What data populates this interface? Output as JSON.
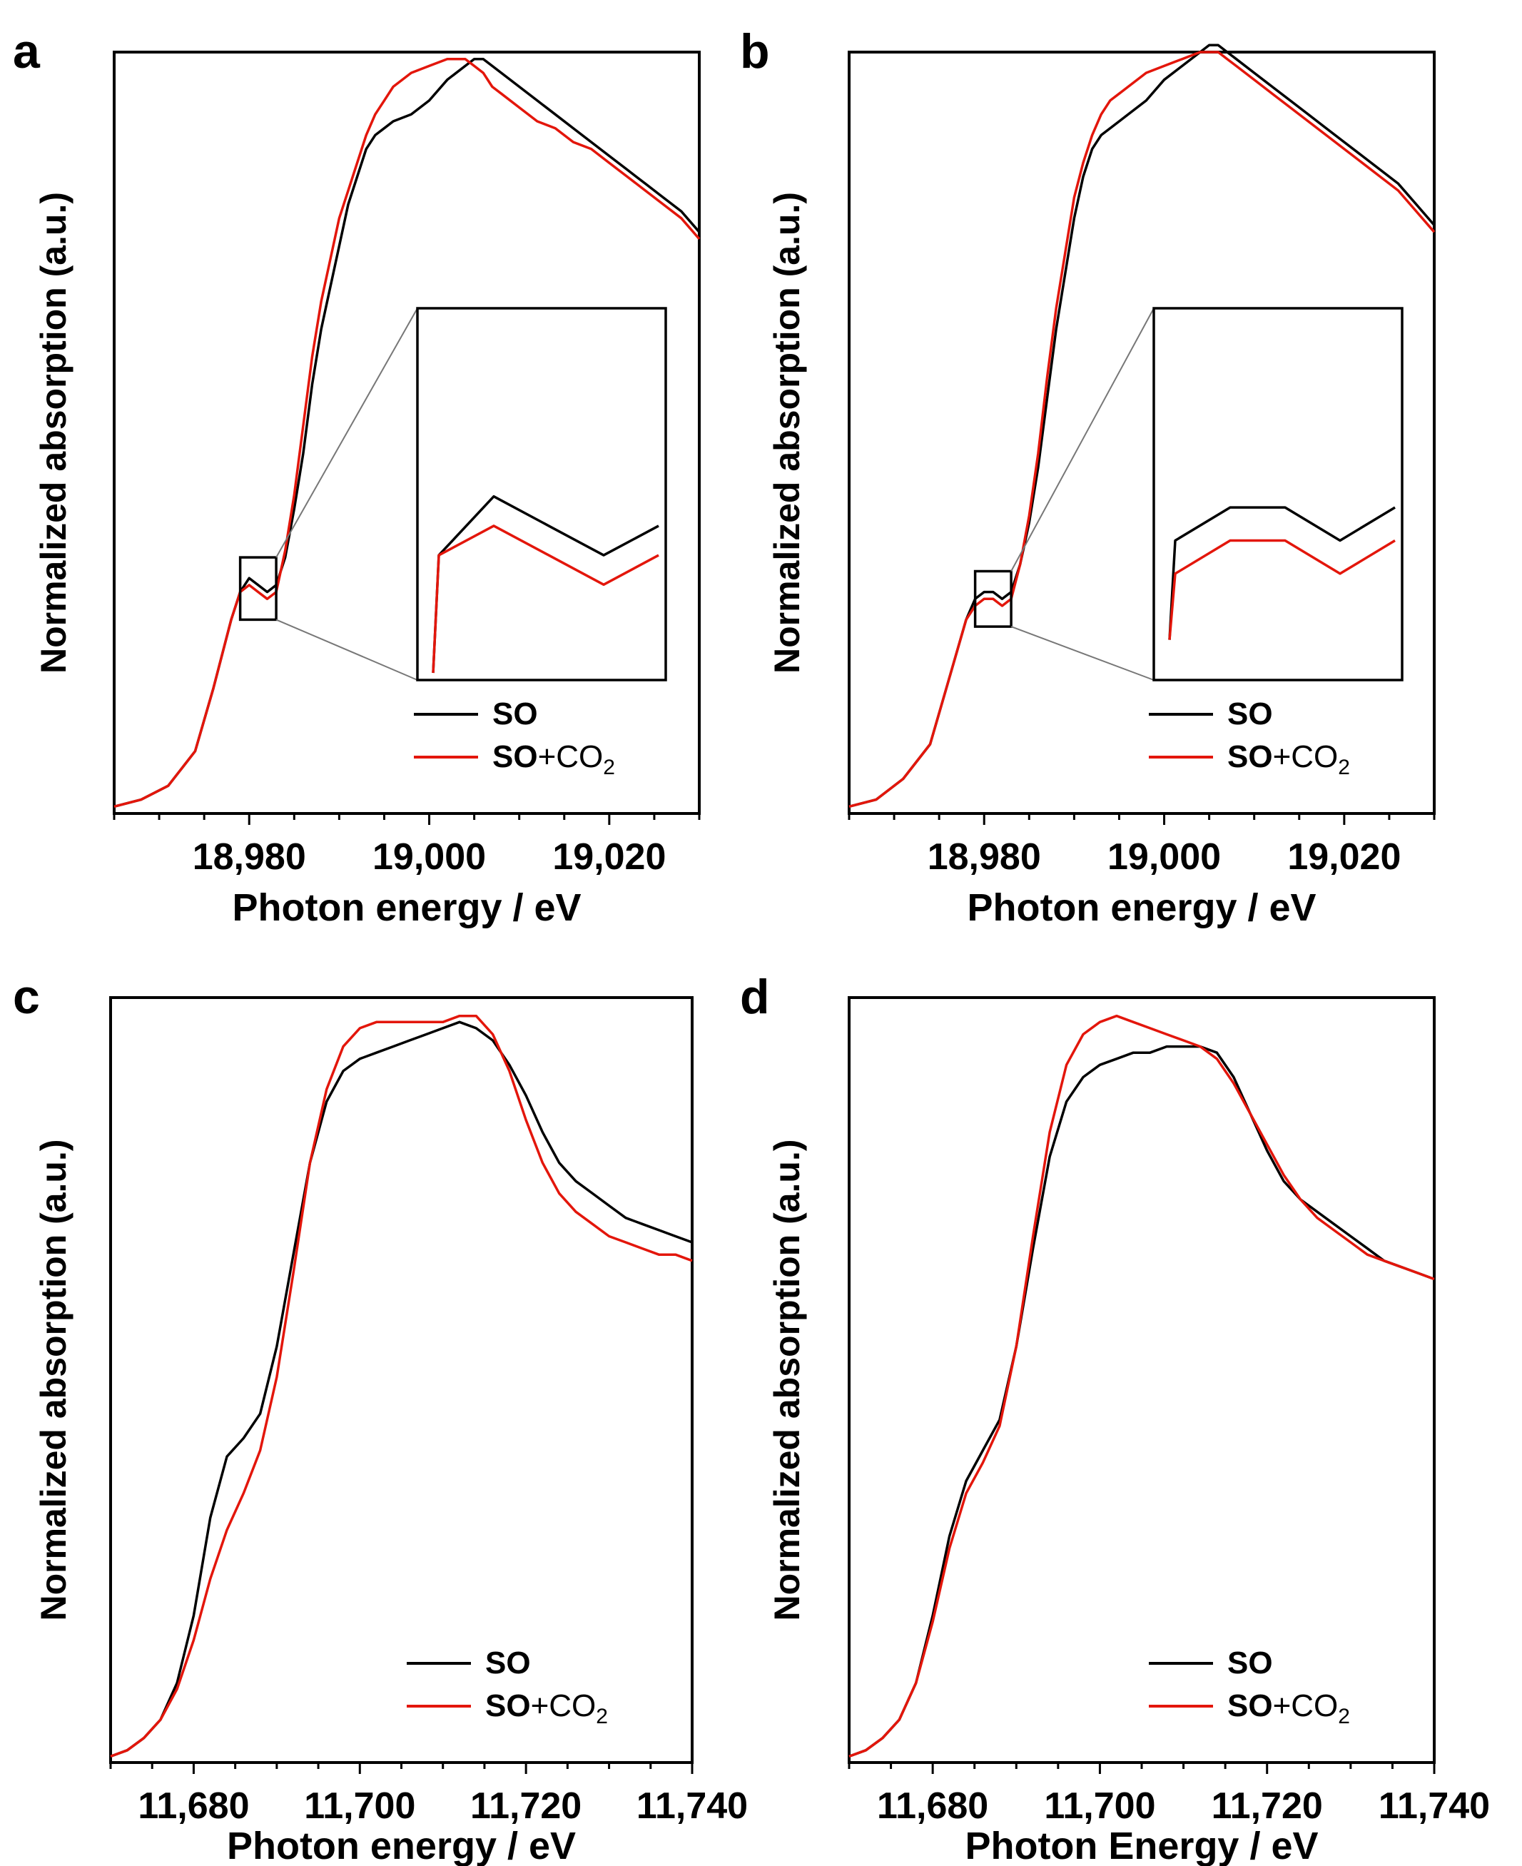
{
  "chart_data": [
    {
      "panel": "a",
      "type": "line",
      "title": "",
      "xlabel": "Photon energy / eV",
      "ylabel": "Normalized absorption (a.u.)",
      "xlim": [
        18965,
        19030
      ],
      "ylim": [
        0,
        1.1
      ],
      "xticks": [
        18980,
        19000,
        19020
      ],
      "xtick_labels": [
        "18,980",
        "19,000",
        "19,020"
      ],
      "legend": [
        "SO",
        "SO+CO2"
      ],
      "legend_sub": "2",
      "legend_position": "bottom-right",
      "inset": {
        "x_range": [
          18979,
          18983
        ],
        "y_range": [
          0.28,
          0.37
        ]
      },
      "colors": {
        "SO": "#000000",
        "SO+CO2": "#e3160b"
      },
      "series": [
        {
          "name": "SO",
          "x": [
            18965,
            18968,
            18971,
            18974,
            18976,
            18978,
            18979,
            18980,
            18981,
            18982,
            18983,
            18984,
            18985,
            18986,
            18987,
            18988,
            18989,
            18990,
            18991,
            18992,
            18993,
            18994,
            18995,
            18996,
            18998,
            19000,
            19002,
            19004,
            19005,
            19006,
            19007,
            19008,
            19010,
            19012,
            19014,
            19016,
            19018,
            19020,
            19022,
            19024,
            19026,
            19028,
            19030
          ],
          "y": [
            0.01,
            0.02,
            0.04,
            0.09,
            0.18,
            0.28,
            0.32,
            0.34,
            0.33,
            0.32,
            0.33,
            0.37,
            0.44,
            0.52,
            0.62,
            0.7,
            0.76,
            0.82,
            0.88,
            0.92,
            0.96,
            0.98,
            0.99,
            1.0,
            1.01,
            1.03,
            1.06,
            1.08,
            1.09,
            1.09,
            1.08,
            1.07,
            1.05,
            1.03,
            1.01,
            0.99,
            0.97,
            0.95,
            0.93,
            0.91,
            0.89,
            0.87,
            0.84
          ]
        },
        {
          "name": "SO+CO2",
          "x": [
            18965,
            18968,
            18971,
            18974,
            18976,
            18978,
            18979,
            18980,
            18981,
            18982,
            18983,
            18984,
            18985,
            18986,
            18987,
            18988,
            18989,
            18990,
            18991,
            18992,
            18993,
            18994,
            18995,
            18996,
            18998,
            19000,
            19002,
            19004,
            19005,
            19006,
            19007,
            19008,
            19010,
            19012,
            19014,
            19016,
            19018,
            19020,
            19022,
            19024,
            19026,
            19028,
            19030
          ],
          "y": [
            0.01,
            0.02,
            0.04,
            0.09,
            0.18,
            0.28,
            0.32,
            0.33,
            0.32,
            0.31,
            0.32,
            0.38,
            0.46,
            0.56,
            0.66,
            0.74,
            0.8,
            0.86,
            0.9,
            0.94,
            0.98,
            1.01,
            1.03,
            1.05,
            1.07,
            1.08,
            1.09,
            1.09,
            1.08,
            1.07,
            1.05,
            1.04,
            1.02,
            1.0,
            0.99,
            0.97,
            0.96,
            0.94,
            0.92,
            0.9,
            0.88,
            0.86,
            0.83
          ]
        }
      ]
    },
    {
      "panel": "b",
      "type": "line",
      "title": "",
      "xlabel": "Photon energy / eV",
      "ylabel": "Normalized absorption (a.u.)",
      "xlim": [
        18965,
        19030
      ],
      "ylim": [
        0,
        1.1
      ],
      "xticks": [
        18980,
        19000,
        19020
      ],
      "xtick_labels": [
        "18,980",
        "19,000",
        "19,020"
      ],
      "legend": [
        "SO",
        "SO+CO2"
      ],
      "legend_sub": "2",
      "legend_position": "bottom-right",
      "inset": {
        "x_range": [
          18979,
          18983
        ],
        "y_range": [
          0.27,
          0.35
        ]
      },
      "colors": {
        "SO": "#000000",
        "SO+CO2": "#e3160b"
      },
      "series": [
        {
          "name": "SO",
          "x": [
            18965,
            18968,
            18971,
            18974,
            18976,
            18978,
            18979,
            18980,
            18981,
            18982,
            18983,
            18984,
            18985,
            18986,
            18987,
            18988,
            18989,
            18990,
            18991,
            18992,
            18993,
            18994,
            18995,
            18996,
            18998,
            19000,
            19002,
            19004,
            19005,
            19006,
            19007,
            19008,
            19010,
            19012,
            19014,
            19016,
            19018,
            19020,
            19022,
            19024,
            19026,
            19028,
            19030
          ],
          "y": [
            0.01,
            0.02,
            0.05,
            0.1,
            0.19,
            0.28,
            0.31,
            0.32,
            0.32,
            0.31,
            0.32,
            0.36,
            0.42,
            0.5,
            0.6,
            0.7,
            0.78,
            0.86,
            0.92,
            0.96,
            0.98,
            0.99,
            1.0,
            1.01,
            1.03,
            1.06,
            1.08,
            1.1,
            1.11,
            1.11,
            1.1,
            1.09,
            1.07,
            1.05,
            1.03,
            1.01,
            0.99,
            0.97,
            0.95,
            0.93,
            0.91,
            0.88,
            0.85
          ]
        },
        {
          "name": "SO+CO2",
          "x": [
            18965,
            18968,
            18971,
            18974,
            18976,
            18978,
            18979,
            18980,
            18981,
            18982,
            18983,
            18984,
            18985,
            18986,
            18987,
            18988,
            18989,
            18990,
            18991,
            18992,
            18993,
            18994,
            18995,
            18996,
            18998,
            19000,
            19002,
            19004,
            19005,
            19006,
            19007,
            19008,
            19010,
            19012,
            19014,
            19016,
            19018,
            19020,
            19022,
            19024,
            19026,
            19028,
            19030
          ],
          "y": [
            0.01,
            0.02,
            0.05,
            0.1,
            0.19,
            0.28,
            0.3,
            0.31,
            0.31,
            0.3,
            0.31,
            0.36,
            0.43,
            0.52,
            0.63,
            0.73,
            0.81,
            0.89,
            0.94,
            0.98,
            1.01,
            1.03,
            1.04,
            1.05,
            1.07,
            1.08,
            1.09,
            1.1,
            1.1,
            1.1,
            1.09,
            1.08,
            1.06,
            1.04,
            1.02,
            1.0,
            0.98,
            0.96,
            0.94,
            0.92,
            0.9,
            0.87,
            0.84
          ]
        }
      ]
    },
    {
      "panel": "c",
      "type": "line",
      "title": "",
      "xlabel": "Photon energy / eV",
      "ylabel": "Normalized absorption (a.u.)",
      "xlim": [
        11670,
        11740
      ],
      "ylim": [
        0,
        1.25
      ],
      "xticks": [
        11680,
        11700,
        11720,
        11740
      ],
      "xtick_labels": [
        "11,680",
        "11,700",
        "11,720",
        "11,740"
      ],
      "legend": [
        "SO",
        "SO+CO2"
      ],
      "legend_sub": "2",
      "legend_position": "bottom-right",
      "colors": {
        "SO": "#000000",
        "SO+CO2": "#e3160b"
      },
      "series": [
        {
          "name": "SO",
          "x": [
            11670,
            11672,
            11674,
            11676,
            11678,
            11680,
            11682,
            11684,
            11686,
            11688,
            11690,
            11692,
            11694,
            11696,
            11698,
            11700,
            11702,
            11704,
            11706,
            11708,
            11710,
            11712,
            11714,
            11716,
            11718,
            11720,
            11722,
            11724,
            11726,
            11728,
            11730,
            11732,
            11734,
            11736,
            11738,
            11740
          ],
          "y": [
            0.01,
            0.02,
            0.04,
            0.07,
            0.13,
            0.24,
            0.4,
            0.5,
            0.53,
            0.57,
            0.68,
            0.83,
            0.98,
            1.08,
            1.13,
            1.15,
            1.16,
            1.17,
            1.18,
            1.19,
            1.2,
            1.21,
            1.2,
            1.18,
            1.14,
            1.09,
            1.03,
            0.98,
            0.95,
            0.93,
            0.91,
            0.89,
            0.88,
            0.87,
            0.86,
            0.85
          ]
        },
        {
          "name": "SO+CO2",
          "x": [
            11670,
            11672,
            11674,
            11676,
            11678,
            11680,
            11682,
            11684,
            11686,
            11688,
            11690,
            11692,
            11694,
            11696,
            11698,
            11700,
            11702,
            11704,
            11706,
            11708,
            11710,
            11712,
            11714,
            11716,
            11718,
            11720,
            11722,
            11724,
            11726,
            11728,
            11730,
            11732,
            11734,
            11736,
            11738,
            11740
          ],
          "y": [
            0.01,
            0.02,
            0.04,
            0.07,
            0.12,
            0.2,
            0.3,
            0.38,
            0.44,
            0.51,
            0.63,
            0.8,
            0.98,
            1.1,
            1.17,
            1.2,
            1.21,
            1.21,
            1.21,
            1.21,
            1.21,
            1.22,
            1.22,
            1.19,
            1.13,
            1.05,
            0.98,
            0.93,
            0.9,
            0.88,
            0.86,
            0.85,
            0.84,
            0.83,
            0.83,
            0.82
          ]
        }
      ]
    },
    {
      "panel": "d",
      "type": "line",
      "title": "",
      "xlabel": "Photon Energy / eV",
      "ylabel": "Normalized absorption (a.u.)",
      "xlim": [
        11670,
        11740
      ],
      "ylim": [
        0,
        1.25
      ],
      "xticks": [
        11680,
        11700,
        11720,
        11740
      ],
      "xtick_labels": [
        "11,680",
        "11,700",
        "11,720",
        "11,740"
      ],
      "legend": [
        "SO",
        "SO+CO2"
      ],
      "legend_sub": "2",
      "legend_position": "bottom-right",
      "colors": {
        "SO": "#000000",
        "SO+CO2": "#e3160b"
      },
      "series": [
        {
          "name": "SO",
          "x": [
            11670,
            11672,
            11674,
            11676,
            11678,
            11680,
            11682,
            11684,
            11686,
            11688,
            11690,
            11692,
            11694,
            11696,
            11698,
            11700,
            11702,
            11704,
            11706,
            11708,
            11710,
            11712,
            11714,
            11716,
            11718,
            11720,
            11722,
            11724,
            11726,
            11728,
            11730,
            11732,
            11734,
            11736,
            11738,
            11740
          ],
          "y": [
            0.01,
            0.02,
            0.04,
            0.07,
            0.13,
            0.24,
            0.37,
            0.46,
            0.51,
            0.56,
            0.68,
            0.84,
            0.99,
            1.08,
            1.12,
            1.14,
            1.15,
            1.16,
            1.16,
            1.17,
            1.17,
            1.17,
            1.16,
            1.12,
            1.06,
            1.0,
            0.95,
            0.92,
            0.9,
            0.88,
            0.86,
            0.84,
            0.82,
            0.81,
            0.8,
            0.79
          ]
        },
        {
          "name": "SO+CO2",
          "x": [
            11670,
            11672,
            11674,
            11676,
            11678,
            11680,
            11682,
            11684,
            11686,
            11688,
            11690,
            11692,
            11694,
            11696,
            11698,
            11700,
            11702,
            11704,
            11706,
            11708,
            11710,
            11712,
            11714,
            11716,
            11718,
            11720,
            11722,
            11724,
            11726,
            11728,
            11730,
            11732,
            11734,
            11736,
            11738,
            11740
          ],
          "y": [
            0.01,
            0.02,
            0.04,
            0.07,
            0.13,
            0.23,
            0.35,
            0.44,
            0.49,
            0.55,
            0.68,
            0.86,
            1.03,
            1.14,
            1.19,
            1.21,
            1.22,
            1.21,
            1.2,
            1.19,
            1.18,
            1.17,
            1.15,
            1.11,
            1.06,
            1.01,
            0.96,
            0.92,
            0.89,
            0.87,
            0.85,
            0.83,
            0.82,
            0.81,
            0.8,
            0.79
          ]
        }
      ]
    }
  ]
}
